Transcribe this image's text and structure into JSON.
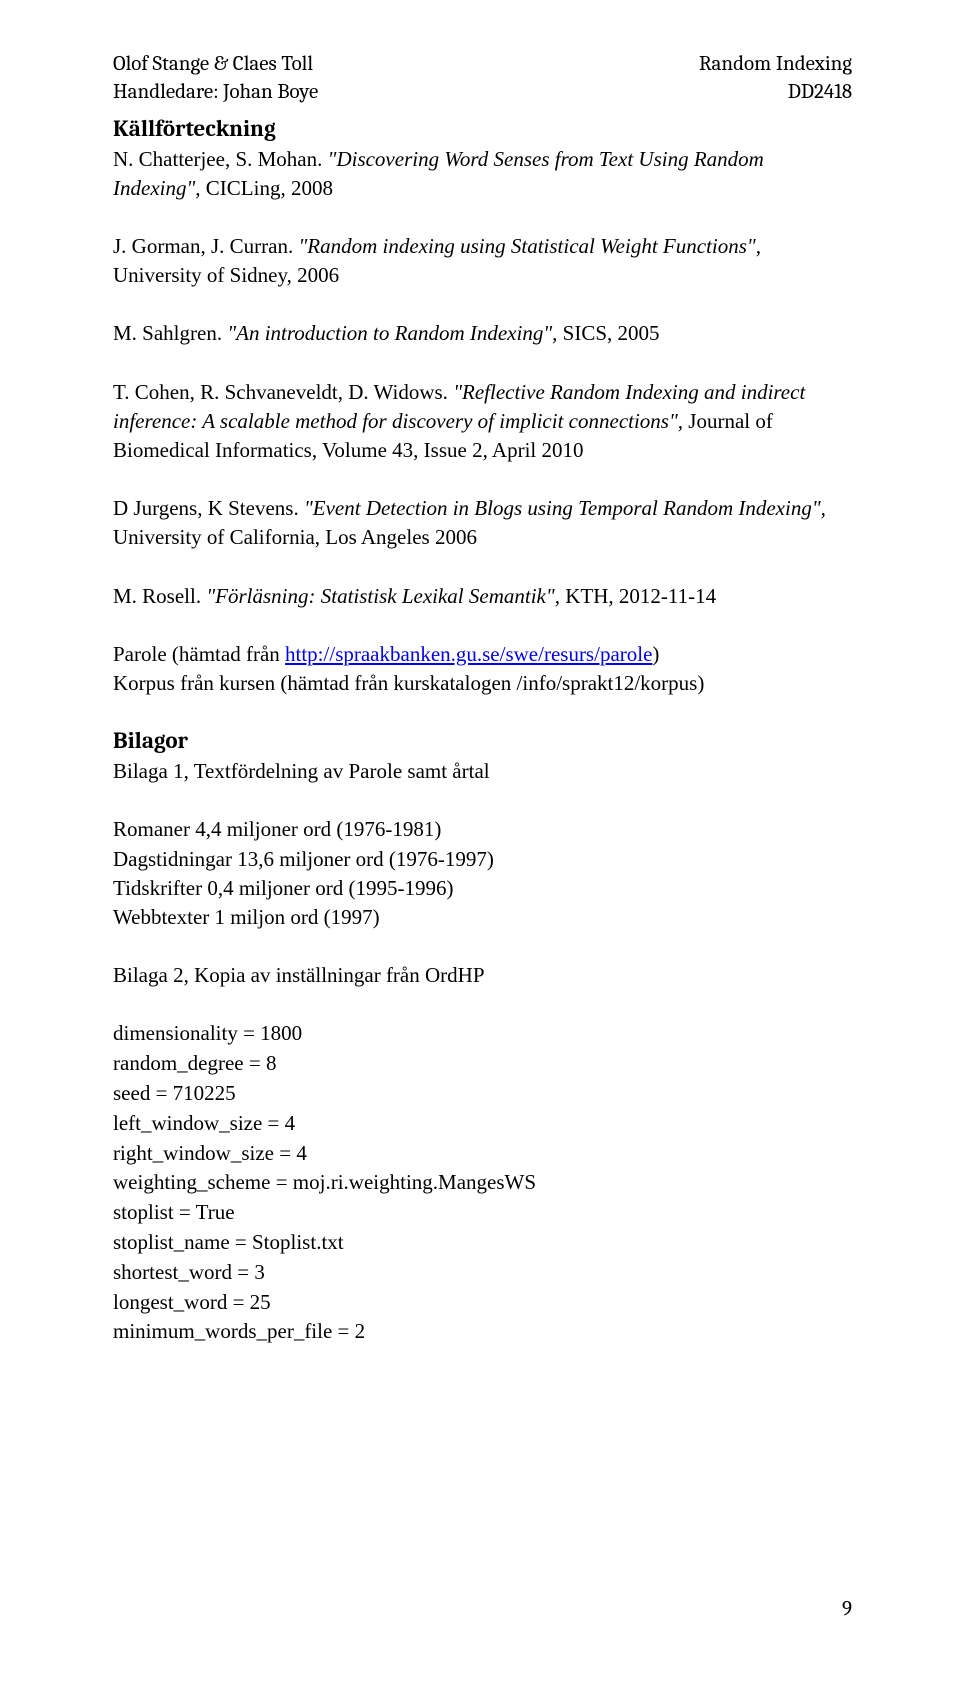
{
  "header": {
    "left1": "Olof Stange & Claes Toll",
    "right1": "Random Indexing",
    "left2": "Handledare: Johan Boye",
    "right2": "DD2418"
  },
  "sections": {
    "bibliography_title": "Källförteckning",
    "bilagor_title": "Bilagor"
  },
  "refs": {
    "r1_a": "N. Chatterjee, S. Mohan. ",
    "r1_b": "\"Discovering Word Senses from Text Using Random Indexing\", ",
    "r1_c": "CICLing, 2008",
    "r2_a": "J. Gorman, J. Curran. ",
    "r2_b": "\"Random indexing using Statistical Weight Functions\", ",
    "r2_c": "University of Sidney, 2006",
    "r3_a": "M. Sahlgren. ",
    "r3_b": "\"An introduction to Random Indexing\", ",
    "r3_c": "SICS, 2005",
    "r4_a": "T. Cohen, R. Schvaneveldt, D. Widows. ",
    "r4_b": "\"Reflective Random Indexing and indirect inference: A scalable method for discovery of implicit connections\", ",
    "r4_c": "Journal of Biomedical Informatics, Volume 43, Issue 2, April 2010",
    "r5_a": "D Jurgens, K Stevens. ",
    "r5_b": "\"Event Detection in Blogs using Temporal Random Indexing\", ",
    "r5_c": "University of California, Los Angeles 2006",
    "r6_a": "M. Rosell. ",
    "r6_b": "\"Förläsning: Statistisk Lexikal Semantik\", ",
    "r6_c": "KTH, 2012-11-14"
  },
  "parole": {
    "pre": "Parole (hämtad från ",
    "link": "http://spraakbanken.gu.se/swe/resurs/parole",
    "post": ")",
    "line2": "Korpus från kursen (hämtad från kurskatalogen /info/sprakt12/korpus)"
  },
  "bilaga1": {
    "title": "Bilaga 1, Textfördelning av Parole samt årtal",
    "l1": "Romaner 4,4 miljoner ord (1976-1981)",
    "l2": "Dagstidningar 13,6 miljoner ord (1976-1997)",
    "l3": "Tidskrifter 0,4 miljoner ord (1995-1996)",
    "l4": "Webbtexter 1 miljon ord (1997)"
  },
  "bilaga2": {
    "title": "Bilaga 2, Kopia av inställningar från OrdHP",
    "s1": "dimensionality = 1800",
    "s2": "random_degree  = 8",
    "s3": "seed = 710225",
    "s4": "left_window_size  = 4",
    "s5": "right_window_size = 4",
    "s6": "weighting_scheme = moj.ri.weighting.MangesWS",
    "s7": "stoplist = True",
    "s8": "stoplist_name = Stoplist.txt",
    "s9": "shortest_word = 3",
    "s10": "longest_word = 25",
    "s11": "minimum_words_per_file = 2"
  },
  "page_number": "9"
}
